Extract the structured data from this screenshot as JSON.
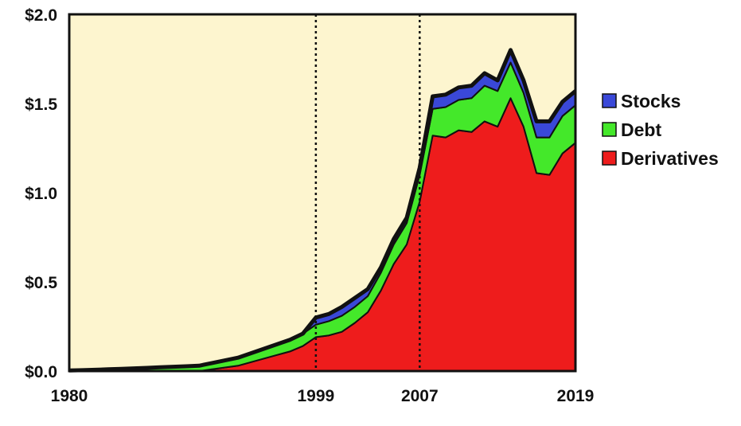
{
  "chart_data": {
    "type": "area",
    "stacked": true,
    "title": "",
    "xlabel": "",
    "ylabel": "",
    "xlim": [
      1980,
      2019
    ],
    "ylim": [
      0,
      2.0
    ],
    "x_ticks": [
      1980,
      1999,
      2007,
      2019
    ],
    "y_ticks": [
      {
        "value": 0.0,
        "label": "$0.0"
      },
      {
        "value": 0.5,
        "label": "$0.5"
      },
      {
        "value": 1.0,
        "label": "$1.0"
      },
      {
        "value": 1.5,
        "label": "$1.5"
      },
      {
        "value": 2.0,
        "label": "$2.0"
      }
    ],
    "reference_lines_x": [
      1999,
      2007
    ],
    "grid": false,
    "legend_position": "right",
    "x": [
      1980,
      1981,
      1982,
      1983,
      1984,
      1985,
      1986,
      1987,
      1988,
      1989,
      1990,
      1991,
      1992,
      1993,
      1994,
      1995,
      1996,
      1997,
      1998,
      1999,
      2000,
      2001,
      2002,
      2003,
      2004,
      2005,
      2006,
      2007,
      2008,
      2009,
      2010,
      2011,
      2012,
      2013,
      2014,
      2015,
      2016,
      2017,
      2018,
      2019
    ],
    "series": [
      {
        "name": "Derivatives",
        "color": "#ee1c1c",
        "values": [
          0.0,
          0.0,
          0.0,
          0.0,
          0.0,
          0.0,
          0.0,
          0.0,
          0.0,
          0.0,
          0.0,
          0.01,
          0.02,
          0.03,
          0.05,
          0.07,
          0.09,
          0.11,
          0.14,
          0.19,
          0.2,
          0.22,
          0.27,
          0.33,
          0.45,
          0.6,
          0.71,
          0.95,
          1.32,
          1.31,
          1.35,
          1.34,
          1.4,
          1.37,
          1.53,
          1.37,
          1.11,
          1.1,
          1.22,
          1.28
        ]
      },
      {
        "name": "Debt",
        "color": "#44e82a",
        "values": [
          0.003,
          0.005,
          0.007,
          0.01,
          0.012,
          0.015,
          0.018,
          0.021,
          0.024,
          0.027,
          0.03,
          0.035,
          0.04,
          0.045,
          0.05,
          0.055,
          0.06,
          0.065,
          0.07,
          0.07,
          0.08,
          0.09,
          0.09,
          0.09,
          0.1,
          0.11,
          0.12,
          0.15,
          0.15,
          0.17,
          0.17,
          0.19,
          0.2,
          0.2,
          0.2,
          0.19,
          0.2,
          0.21,
          0.21,
          0.21
        ]
      },
      {
        "name": "Stocks",
        "color": "#3a48d8",
        "values": [
          0.0,
          0.0,
          0.0,
          0.0,
          0.0,
          0.0,
          0.0,
          0.0,
          0.0,
          0.0,
          0.0,
          0.0,
          0.0,
          0.0,
          0.0,
          0.0,
          0.0,
          0.0,
          0.0,
          0.04,
          0.04,
          0.05,
          0.05,
          0.04,
          0.03,
          0.03,
          0.03,
          0.04,
          0.07,
          0.07,
          0.07,
          0.07,
          0.07,
          0.06,
          0.07,
          0.07,
          0.09,
          0.09,
          0.08,
          0.08
        ]
      }
    ],
    "colors": {
      "background": "#fdf5cf",
      "outline": "#111111",
      "reference_line": "#111111"
    }
  }
}
